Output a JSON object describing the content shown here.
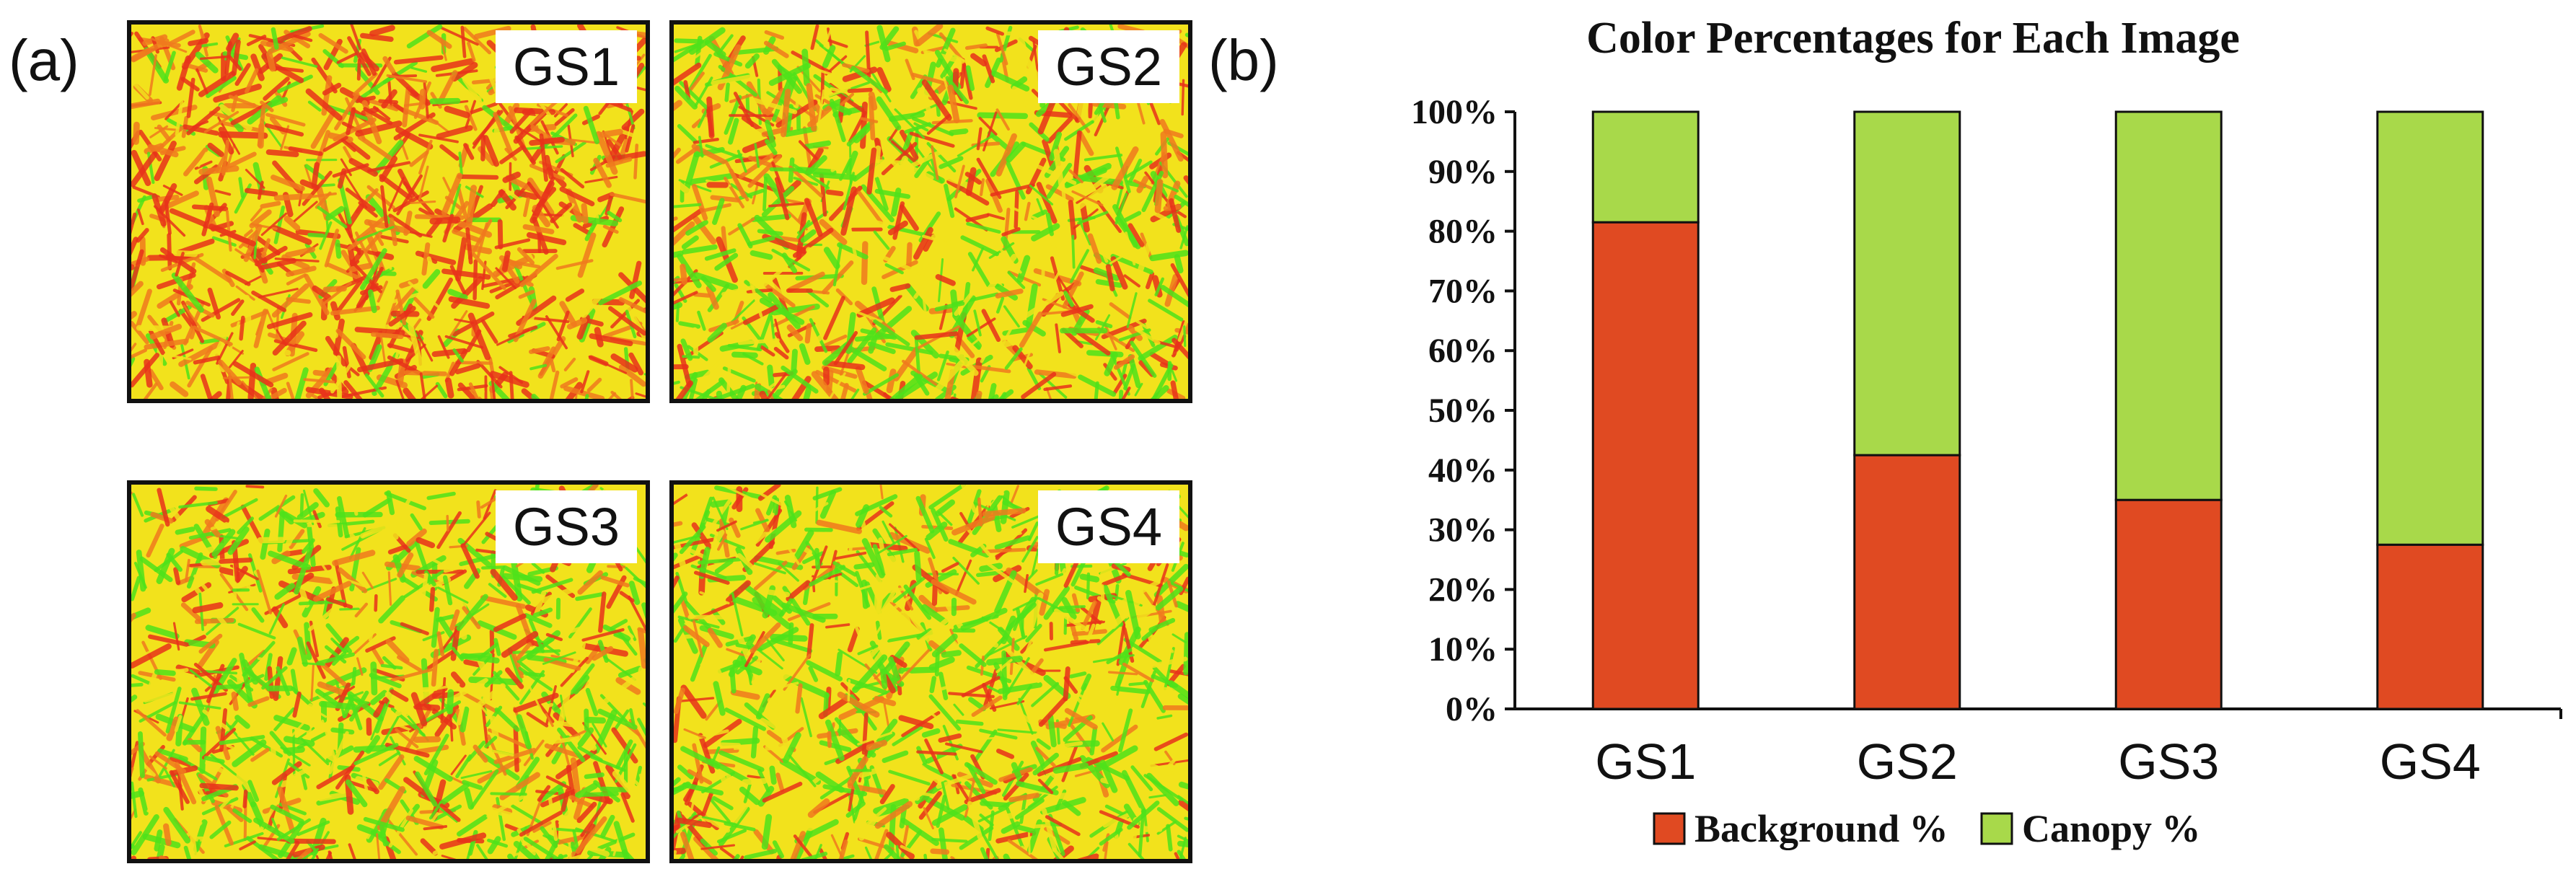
{
  "panel_labels": {
    "a": "(a)",
    "b": "(b)"
  },
  "images": [
    {
      "label": "GS1",
      "green_share": 0.19
    },
    {
      "label": "GS2",
      "green_share": 0.57
    },
    {
      "label": "GS3",
      "green_share": 0.65
    },
    {
      "label": "GS4",
      "green_share": 0.72
    }
  ],
  "colors": {
    "background_series": "#e04a22",
    "canopy_series": "#a8d94a",
    "map_red": "#e8321a",
    "map_orange": "#f07a1e",
    "map_yellow": "#f2e21c",
    "map_green": "#4ee21a",
    "axis": "#111111"
  },
  "chart_data": {
    "type": "bar",
    "stacked": true,
    "title": "Color Percentages for Each Image",
    "categories": [
      "GS1",
      "GS2",
      "GS3",
      "GS4"
    ],
    "series": [
      {
        "name": "Background %",
        "values": [
          81.5,
          42.5,
          35,
          27.5
        ]
      },
      {
        "name": "Canopy %",
        "values": [
          18.5,
          57.5,
          65,
          72.5
        ]
      }
    ],
    "yticks": [
      "0%",
      "10%",
      "20%",
      "30%",
      "40%",
      "50%",
      "60%",
      "70%",
      "80%",
      "90%",
      "100%"
    ],
    "ylim": [
      0,
      100
    ],
    "xlabel": "",
    "ylabel": "",
    "legend": [
      "Background %",
      "Canopy %"
    ],
    "legend_position": "bottom"
  }
}
